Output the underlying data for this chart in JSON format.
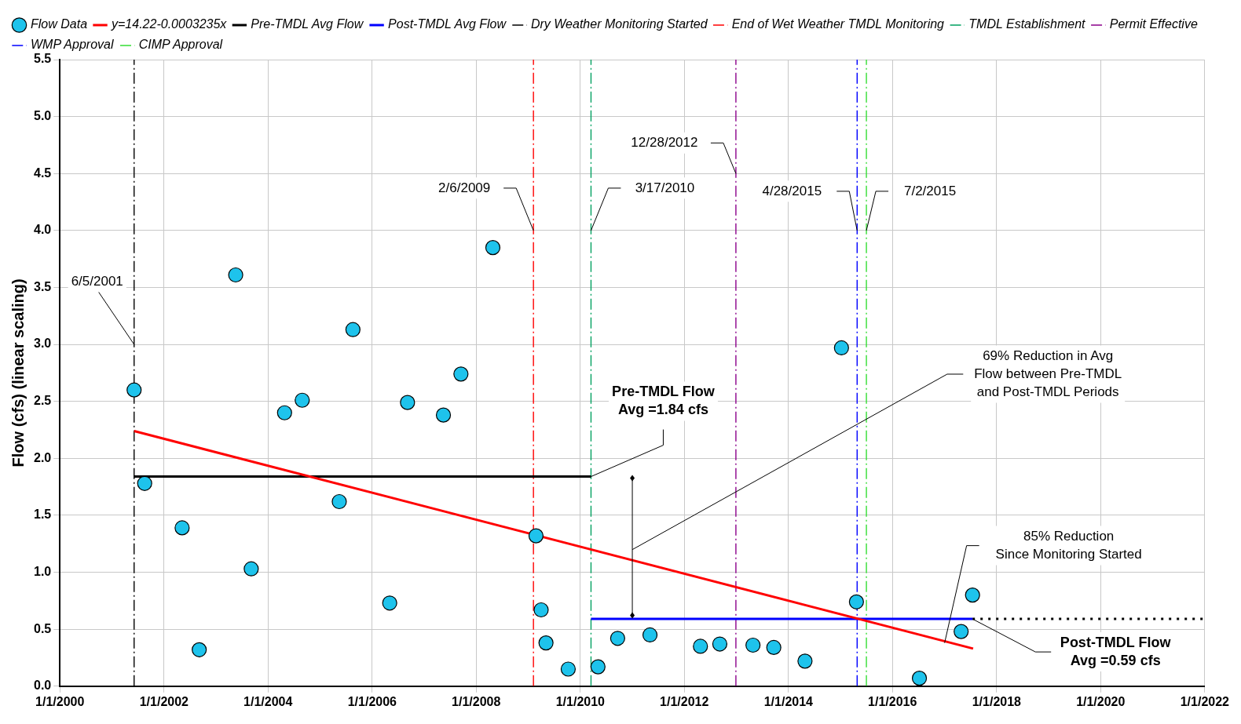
{
  "chart_data": {
    "type": "scatter",
    "ylabel": "Flow (cfs) (linear scaling)",
    "xlim": [
      "2000-01-01",
      "2022-01-01"
    ],
    "xticks": [
      {
        "value": "2000-01-01",
        "label": "1/1/2000"
      },
      {
        "value": "2002-01-01",
        "label": "1/1/2002"
      },
      {
        "value": "2004-01-01",
        "label": "1/1/2004"
      },
      {
        "value": "2006-01-01",
        "label": "1/1/2006"
      },
      {
        "value": "2008-01-01",
        "label": "1/1/2008"
      },
      {
        "value": "2010-01-01",
        "label": "1/1/2010"
      },
      {
        "value": "2012-01-01",
        "label": "1/1/2012"
      },
      {
        "value": "2014-01-01",
        "label": "1/1/2014"
      },
      {
        "value": "2016-01-01",
        "label": "1/1/2016"
      },
      {
        "value": "2018-01-01",
        "label": "1/1/2018"
      },
      {
        "value": "2020-01-01",
        "label": "1/1/2020"
      },
      {
        "value": "2022-01-01",
        "label": "1/1/2022"
      }
    ],
    "ylim": [
      0,
      5.5
    ],
    "yticks": [
      {
        "value": 0,
        "label": "0.0"
      },
      {
        "value": 0.5,
        "label": "0.5"
      },
      {
        "value": 1,
        "label": "1.0"
      },
      {
        "value": 1.5,
        "label": "1.5"
      },
      {
        "value": 2,
        "label": "2.0"
      },
      {
        "value": 2.5,
        "label": "2.5"
      },
      {
        "value": 3,
        "label": "3.0"
      },
      {
        "value": 3.5,
        "label": "3.5"
      },
      {
        "value": 4,
        "label": "4.0"
      },
      {
        "value": 4.5,
        "label": "4.5"
      },
      {
        "value": 5,
        "label": "5.0"
      },
      {
        "value": 5.5,
        "label": "5.5"
      }
    ],
    "grid": true,
    "legend": "top",
    "series": [
      {
        "name": "Flow Data",
        "marker": "circle",
        "color": "#1ec3ec",
        "x": [
          "2001-06-05",
          "2001-08-18",
          "2002-05-08",
          "2002-09-05",
          "2003-05-19",
          "2003-09-05",
          "2004-04-26",
          "2004-08-28",
          "2005-05-15",
          "2005-08-19",
          "2006-05-04",
          "2006-09-06",
          "2007-05-16",
          "2007-09-16",
          "2008-04-27",
          "2009-02-24",
          "2009-04-01",
          "2009-05-05",
          "2009-10-08",
          "2010-05-05",
          "2010-09-20",
          "2011-05-05",
          "2012-04-23",
          "2012-09-06",
          "2013-04-27",
          "2013-09-20",
          "2014-04-27",
          "2015-01-08",
          "2015-04-23",
          "2016-07-08",
          "2017-04-27",
          "2017-07-16"
        ],
        "values": [
          2.6,
          1.78,
          1.39,
          0.32,
          3.61,
          1.03,
          2.4,
          2.51,
          1.62,
          3.13,
          0.73,
          2.49,
          2.38,
          2.74,
          3.85,
          1.32,
          0.67,
          0.38,
          0.15,
          0.17,
          0.42,
          0.45,
          0.35,
          0.37,
          0.36,
          0.34,
          0.22,
          2.97,
          0.74,
          0.07,
          0.48,
          0.8
        ]
      },
      {
        "name": "y=14.22-0.0003235x",
        "type": "line",
        "marker": "none",
        "line_style": "solid",
        "color": "#ff0000",
        "x": [
          "2001-06-05",
          "2017-07-20"
        ],
        "values": [
          2.24,
          0.33
        ]
      },
      {
        "name": "Pre-TMDL Avg Flow",
        "type": "line",
        "marker": "none",
        "line_style": "solid",
        "color": "#000000",
        "x": [
          "2001-06-05",
          "2010-03-17"
        ],
        "values": [
          1.84,
          1.84
        ]
      },
      {
        "name": "Post-TMDL Avg Flow",
        "type": "line",
        "marker": "none",
        "line_style": "solid",
        "color": "#0000ff",
        "x": [
          "2010-03-17",
          "2017-07-16"
        ],
        "values": [
          0.59,
          0.59
        ]
      },
      {
        "type": "line",
        "marker": "none",
        "line_style": "dotted",
        "color": "#000000",
        "x": [
          "2017-07-16",
          "2022-01-01"
        ],
        "values": [
          0.59,
          0.59
        ]
      },
      {
        "name": "Dry Weather Monitoring Started",
        "type": "line",
        "marker": "none",
        "line_style": "dashed",
        "color": "#000000",
        "x": [
          "2001-06-05",
          "2001-06-05"
        ],
        "values": [
          0,
          5.5
        ]
      },
      {
        "name": "End of Wet Weather TMDL Monitoring",
        "type": "line",
        "marker": "none",
        "line_style": "dashed",
        "color": "#ff0000",
        "x": [
          "2009-02-06",
          "2009-02-06"
        ],
        "values": [
          0,
          5.5
        ]
      },
      {
        "name": "TMDL Establishment",
        "type": "line",
        "marker": "none",
        "line_style": "dashed",
        "color": "#00a060",
        "x": [
          "2010-03-17",
          "2010-03-17"
        ],
        "values": [
          0,
          5.5
        ]
      },
      {
        "name": "Permit Effective",
        "type": "line",
        "marker": "none",
        "line_style": "dashed",
        "color": "#8b008b",
        "x": [
          "2012-12-28",
          "2012-12-28"
        ],
        "values": [
          0,
          5.5
        ]
      },
      {
        "name": "WMP Approval",
        "type": "line",
        "marker": "none",
        "line_style": "dashed",
        "color": "#0000ff",
        "x": [
          "2015-04-28",
          "2015-04-28"
        ],
        "values": [
          0,
          5.5
        ]
      },
      {
        "name": "CIMP Approval",
        "type": "line",
        "marker": "none",
        "line_style": "dashed",
        "color": "#33dd33",
        "x": [
          "2015-07-02",
          "2015-07-02"
        ],
        "values": [
          0,
          5.5
        ]
      }
    ],
    "annotations": [
      {
        "text": "6/5/2001",
        "x": "2001-06-05",
        "y": 3.0
      },
      {
        "text": "2/6/2009",
        "x": "2009-02-06",
        "y": 4.0
      },
      {
        "text": "3/17/2010",
        "x": "2010-03-17",
        "y": 4.0
      },
      {
        "text": "12/28/2012",
        "x": "2012-12-28",
        "y": 4.5
      },
      {
        "text": "4/28/2015",
        "x": "2015-04-28",
        "y": 4.0
      },
      {
        "text": "7/2/2015",
        "x": "2015-07-02",
        "y": 4.0
      },
      {
        "text": "Pre-TMDL Flow\nAvg =1.84 cfs",
        "x": "2010-03-17",
        "y": 1.84
      },
      {
        "text": "Post-TMDL Flow\nAvg =0.59 cfs",
        "x": "2017-07-16",
        "y": 0.59
      },
      "69% Reduction in Avg\nFlow between Pre-TMDL\nand Post-TMDL Periods",
      {
        "text": "85% Reduction\nSince Monitoring Started",
        "x": "2017-01-01",
        "y": 0.38
      }
    ]
  }
}
